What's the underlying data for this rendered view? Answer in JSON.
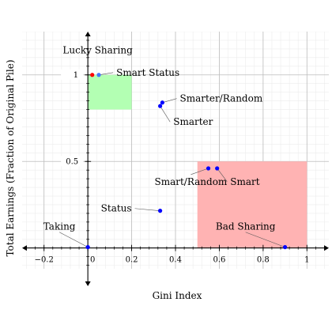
{
  "chart_data": {
    "type": "scatter",
    "xlabel": "Gini Index",
    "ylabel": "Total Earnings (Fraction of Original Pile)",
    "xlim": [
      -0.3,
      1.1
    ],
    "ylim": [
      -0.12,
      1.25
    ],
    "x_ticks": [
      -0.2,
      0,
      0.2,
      0.4,
      0.6,
      0.8,
      1
    ],
    "x_tick_labels": [
      "−0.2",
      "0",
      "0.2",
      "0.4",
      "0.6",
      "0.8",
      "1"
    ],
    "y_ticks": [
      0.5,
      1
    ],
    "y_tick_labels": [
      "0.5",
      "1"
    ],
    "grid": true,
    "regions": [
      {
        "label": "Lucky Sharing",
        "x": [
          0,
          0.2
        ],
        "y": [
          0.8,
          1
        ],
        "color": "#b3ffb3"
      },
      {
        "label": "Bad Sharing",
        "x": [
          0.5,
          1
        ],
        "y": [
          0,
          0.5
        ],
        "color": "#ffb3b3"
      }
    ],
    "points": [
      {
        "label": "",
        "x": 0.02,
        "y": 1.0,
        "color": "#ff0000"
      },
      {
        "label": "Smart Status",
        "x": 0.05,
        "y": 1.0,
        "color": "#4477ff"
      },
      {
        "label": "Smarter/Random",
        "x": 0.34,
        "y": 0.84,
        "color": "#0000ff"
      },
      {
        "label": "Smarter",
        "x": 0.33,
        "y": 0.82,
        "color": "#0000ff"
      },
      {
        "label": "Smart/Random",
        "x": 0.55,
        "y": 0.46,
        "color": "#0000ff"
      },
      {
        "label": "Smart",
        "x": 0.59,
        "y": 0.46,
        "color": "#0000ff"
      },
      {
        "label": "Status",
        "x": 0.33,
        "y": 0.215,
        "color": "#0000ff"
      },
      {
        "label": "Taking",
        "x": 0.0,
        "y": 0.005,
        "color": "#0000ff"
      },
      {
        "label": "Bad Sharing",
        "x": 0.9,
        "y": 0.005,
        "color": "#0000ff"
      }
    ],
    "annotations": [
      {
        "text": "Lucky Sharing",
        "x": 0.045,
        "y": 1.125,
        "anchor": "middle"
      },
      {
        "text": "Smart Status",
        "x": 0.13,
        "y": 0.995,
        "anchor": "start",
        "point": 1
      },
      {
        "text": "Smarter/Random",
        "x": 0.42,
        "y": 0.845,
        "anchor": "start",
        "point": 2
      },
      {
        "text": "Smarter",
        "x": 0.39,
        "y": 0.71,
        "anchor": "start",
        "point": 3
      },
      {
        "text": "Smart/Random",
        "x": 0.47,
        "y": 0.365,
        "anchor": "middle",
        "point": 4
      },
      {
        "text": "Smart",
        "x": 0.65,
        "y": 0.365,
        "anchor": "start",
        "point": 5
      },
      {
        "text": "Status",
        "x": 0.2,
        "y": 0.21,
        "anchor": "end",
        "point": 6
      },
      {
        "text": "Taking",
        "x": -0.13,
        "y": 0.105,
        "anchor": "middle",
        "point": 7
      },
      {
        "text": "Bad Sharing",
        "x": 0.72,
        "y": 0.105,
        "anchor": "middle",
        "point": 8
      }
    ]
  }
}
